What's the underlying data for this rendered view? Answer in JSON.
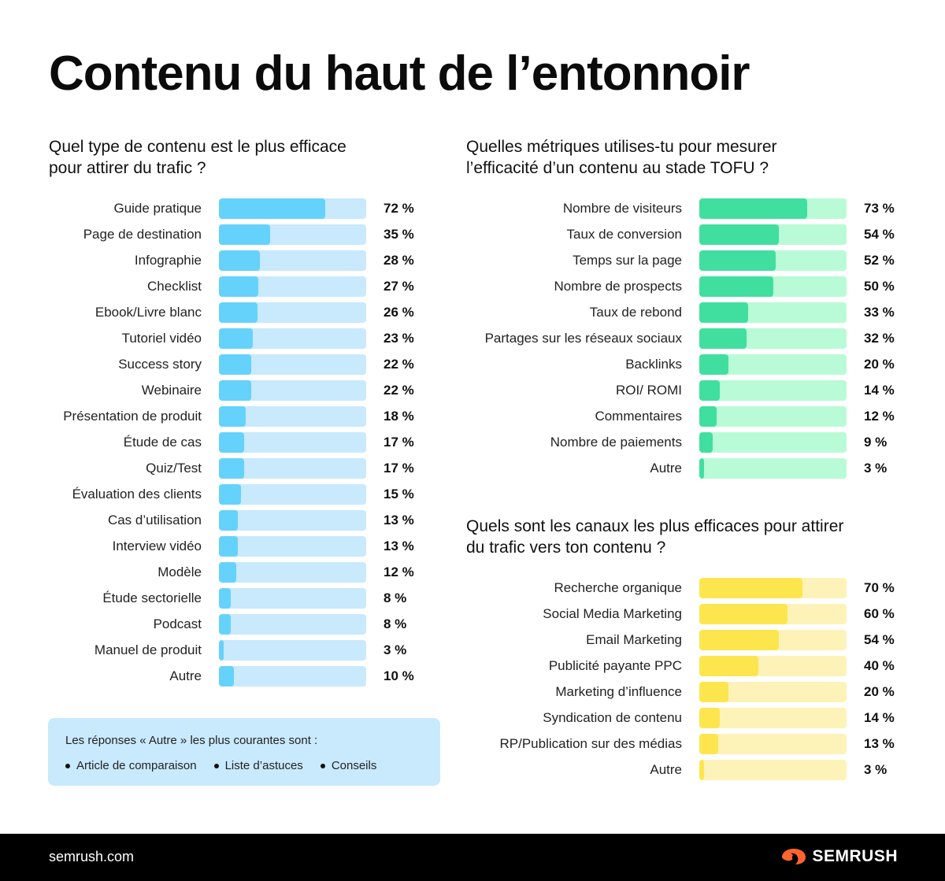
{
  "title": "Contenu du haut de l’entonnoir",
  "colors": {
    "blue_fill": "#65d2fb",
    "blue_track": "#c9e9fd",
    "green_fill": "#41df9f",
    "green_track": "#b9fbd7",
    "yellow_fill": "#fde64d",
    "yellow_track": "#fdf3b8",
    "brand_orange": "#ff642d"
  },
  "chart_data": [
    {
      "type": "bar",
      "orientation": "horizontal",
      "title": "Quel type de contenu est le plus efficace pour attirer du trafic ?",
      "title_lines": [
        "Quel type de contenu est le plus efficace",
        "pour attirer du trafic ?"
      ],
      "categories": [
        "Guide pratique",
        "Page de destination",
        "Infographie",
        "Checklist",
        "Ebook/Livre blanc",
        "Tutoriel vidéo",
        "Success story",
        "Webinaire",
        "Présentation de produit",
        "Étude de cas",
        "Quiz/Test",
        "Évaluation des clients",
        "Cas d’utilisation",
        "Interview vidéo",
        "Modèle",
        "Étude sectorielle",
        "Podcast",
        "Manuel de produit",
        "Autre"
      ],
      "values": [
        72,
        35,
        28,
        27,
        26,
        23,
        22,
        22,
        18,
        17,
        17,
        15,
        13,
        13,
        12,
        8,
        8,
        3,
        10
      ],
      "value_labels": [
        "72 %",
        "35 %",
        "28 %",
        "27 %",
        "26 %",
        "23 %",
        "22 %",
        "22 %",
        "18 %",
        "17 %",
        "17 %",
        "15 %",
        "13 %",
        "13 %",
        "12 %",
        "8 %",
        "8 %",
        "3 %",
        "10 %"
      ],
      "xlim": [
        0,
        100
      ],
      "color": "blue"
    },
    {
      "type": "bar",
      "orientation": "horizontal",
      "title": "Quelles métriques utilises-tu pour mesurer l’efficacité d’un contenu au stade TOFU ?",
      "title_lines": [
        "Quelles métriques utilises-tu pour mesurer",
        "l’efficacité d’un contenu au stade TOFU ?"
      ],
      "categories": [
        "Nombre de visiteurs",
        "Taux de conversion",
        "Temps sur la page",
        "Nombre de prospects",
        "Taux de rebond",
        "Partages sur les réseaux sociaux",
        "Backlinks",
        "ROI/ ROMI",
        "Commentaires",
        "Nombre de paiements",
        "Autre"
      ],
      "values": [
        73,
        54,
        52,
        50,
        33,
        32,
        20,
        14,
        12,
        9,
        3
      ],
      "value_labels": [
        "73 %",
        "54 %",
        "52 %",
        "50 %",
        "33 %",
        "32 %",
        "20 %",
        "14 %",
        "12 %",
        "9 %",
        "3 %"
      ],
      "xlim": [
        0,
        100
      ],
      "color": "green"
    },
    {
      "type": "bar",
      "orientation": "horizontal",
      "title": "Quels sont les canaux les plus efficaces pour attirer du trafic vers ton contenu ?",
      "title_lines": [
        "Quels sont les canaux les plus efficaces pour attirer",
        "du trafic vers ton contenu ?"
      ],
      "categories": [
        "Recherche organique",
        "Social Media Marketing",
        "Email Marketing",
        "Publicité payante PPC",
        "Marketing d’influence",
        "Syndication de contenu",
        "RP/Publication sur des médias",
        "Autre"
      ],
      "values": [
        70,
        60,
        54,
        40,
        20,
        14,
        13,
        3
      ],
      "value_labels": [
        "70 %",
        "60 %",
        "54 %",
        "40 %",
        "20 %",
        "14 %",
        "13 %",
        "3 %"
      ],
      "xlim": [
        0,
        100
      ],
      "color": "yellow"
    }
  ],
  "note": {
    "title": "Les réponses « Autre » les plus courantes sont :",
    "items": [
      "Article de comparaison",
      "Liste d’astuces",
      "Conseils"
    ]
  },
  "footer": {
    "site": "semrush.com",
    "brand": "SEMRUSH",
    "logo_icon": "semrush-flame-icon"
  }
}
